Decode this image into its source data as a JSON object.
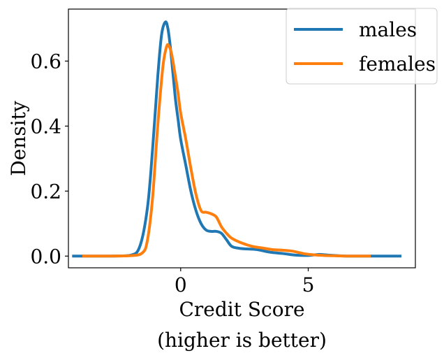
{
  "chart_data": {
    "type": "line",
    "xlabel": "Credit Score",
    "xlabel_sub": "(higher is better)",
    "ylabel": "Density",
    "xlim": [
      -4.4,
      9.2
    ],
    "ylim": [
      -0.036,
      0.76
    ],
    "xticks": [
      0,
      5
    ],
    "xtick_labels": [
      "0",
      "5"
    ],
    "yticks": [
      0.0,
      0.2,
      0.4,
      0.6
    ],
    "ytick_labels": [
      "0.0",
      "0.2",
      "0.4",
      "0.6"
    ],
    "grid": false,
    "legend_position": "top-right",
    "series": [
      {
        "name": "males",
        "color": "#1f77b4",
        "x": [
          -4.2,
          -3.0,
          -2.0,
          -1.6,
          -1.3,
          -1.1,
          -0.9,
          -0.75,
          -0.6,
          -0.5,
          -0.4,
          -0.3,
          -0.2,
          -0.1,
          0.0,
          0.2,
          0.4,
          0.6,
          0.8,
          1.0,
          1.2,
          1.4,
          1.6,
          1.8,
          2.0,
          2.3,
          2.6,
          3.0,
          3.5,
          4.0,
          4.5,
          5.0,
          5.4,
          5.8,
          6.5,
          7.5,
          8.6
        ],
        "y": [
          0.0,
          0.0,
          0.002,
          0.03,
          0.15,
          0.33,
          0.55,
          0.68,
          0.72,
          0.7,
          0.64,
          0.56,
          0.48,
          0.42,
          0.36,
          0.28,
          0.2,
          0.14,
          0.1,
          0.08,
          0.076,
          0.076,
          0.07,
          0.05,
          0.03,
          0.024,
          0.022,
          0.02,
          0.012,
          0.008,
          0.003,
          0.002,
          0.005,
          0.003,
          0.0,
          0.0,
          0.0
        ]
      },
      {
        "name": "females",
        "color": "#ff7f0e",
        "x": [
          -3.8,
          -3.0,
          -2.0,
          -1.5,
          -1.3,
          -1.1,
          -0.9,
          -0.7,
          -0.55,
          -0.45,
          -0.35,
          -0.2,
          -0.1,
          0.0,
          0.2,
          0.4,
          0.6,
          0.8,
          1.0,
          1.2,
          1.4,
          1.6,
          1.8,
          2.0,
          2.4,
          2.8,
          3.2,
          3.6,
          4.0,
          4.4,
          4.8,
          5.2,
          5.6,
          6.0,
          6.5,
          7.0,
          7.4
        ],
        "y": [
          0.0,
          0.0,
          0.001,
          0.01,
          0.05,
          0.18,
          0.4,
          0.58,
          0.645,
          0.645,
          0.62,
          0.55,
          0.5,
          0.44,
          0.36,
          0.27,
          0.19,
          0.14,
          0.135,
          0.13,
          0.12,
          0.09,
          0.07,
          0.055,
          0.04,
          0.03,
          0.025,
          0.02,
          0.018,
          0.015,
          0.008,
          0.004,
          0.002,
          0.001,
          0.0,
          0.0,
          0.0
        ]
      }
    ]
  }
}
